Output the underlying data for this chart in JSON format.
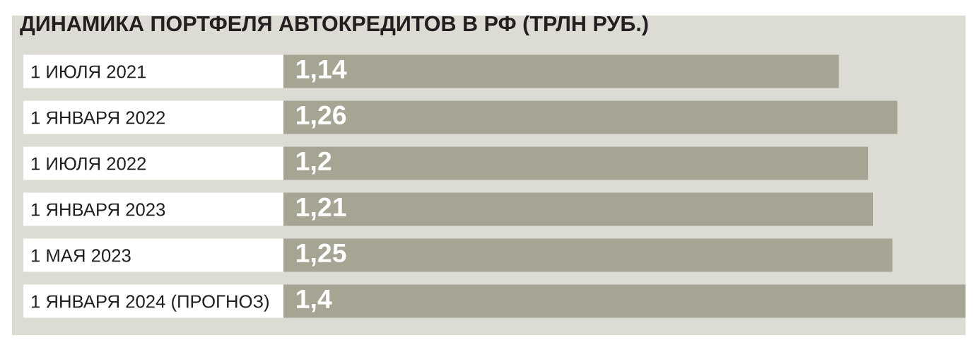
{
  "chart_data": {
    "type": "bar",
    "orientation": "horizontal",
    "title": "ДИНАМИКА ПОРТФЕЛЯ АВТОКРЕДИТОВ В РФ (ТРЛН РУБ.)",
    "categories": [
      "1 ИЮЛЯ 2021",
      "1 ЯНВАРЯ 2022",
      "1 ИЮЛЯ 2022",
      "1 ЯНВАРЯ 2023",
      "1 МАЯ 2023",
      "1 ЯНВАРЯ 2024 (ПРОГНОЗ)"
    ],
    "values": [
      1.14,
      1.26,
      1.2,
      1.21,
      1.25,
      1.4
    ],
    "value_labels": [
      "1,14",
      "1,26",
      "1,2",
      "1,21",
      "1,25",
      "1,4"
    ],
    "color": "#a6a594"
  }
}
